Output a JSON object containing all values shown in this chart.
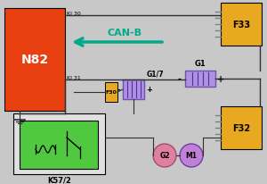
{
  "bg_color": "#c8c8c8",
  "n82_color": "#e84010",
  "f33_color": "#e8a820",
  "f32_color": "#e8a820",
  "f30_color": "#e8a820",
  "g1_color": "#b090e0",
  "g17_color": "#b090e0",
  "k572_inner_color": "#50c840",
  "k572_outer_color": "#e0e0e0",
  "g2_color": "#e080a0",
  "m1_color": "#c080d8",
  "wire_color": "#303030",
  "gray_wire": "#808080",
  "canb_color": "#00aa88",
  "n82_label": "N82",
  "f33_label": "F33",
  "f32_label": "F32",
  "f30_label": "F30",
  "g1_label": "G1",
  "g17_label": "G1/7",
  "k572_label": "K57/2",
  "g2_label": "G2",
  "m1_label": "M1",
  "canb_label": "CAN-B",
  "kl30_label": "Kl 30",
  "kl31_label": "Kl 31"
}
